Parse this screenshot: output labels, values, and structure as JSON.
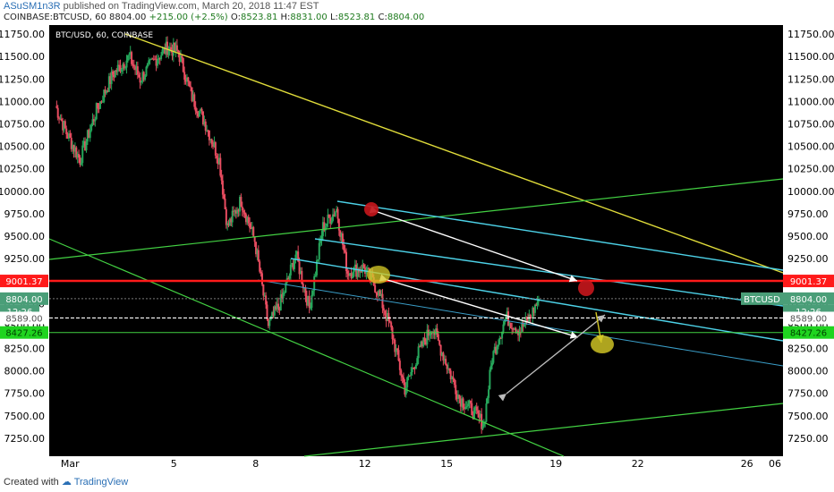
{
  "header": {
    "author": "ASuSM1n3R",
    "published": "published on TradingView.com, March 20, 2018 11:47 EST",
    "symbol": "COINBASE:BTCUSD, 60",
    "last": "8804.00",
    "change": "+215.00 (+2.5%)",
    "open_label": "O:",
    "open": "8523.81",
    "high_label": "H:",
    "high": "8831.00",
    "low_label": "L:",
    "low": "8523.81",
    "close_label": "C:",
    "close": "8804.00"
  },
  "footer": {
    "created_with": "Created with",
    "brand": "TradingView"
  },
  "colors": {
    "background": "#000000",
    "up_candle": "#26a65b",
    "down_candle": "#e84c60",
    "channel_line": "#4dd2e8",
    "trend_line": "#43d143",
    "resistance_line": "#e0dc3a",
    "horizontal_level": "#ff1a1a",
    "marker_red": "#c2161b",
    "marker_yellow": "#d4c826"
  },
  "chart_data": {
    "type": "candlestick",
    "title": "BTC/USD, 60, COINBASE",
    "ylim": [
      7050,
      11850
    ],
    "y_ticks": [
      "11750.00",
      "11500.00",
      "11250.00",
      "11000.00",
      "10750.00",
      "10500.00",
      "10250.00",
      "10000.00",
      "9750.00",
      "9500.00",
      "9250.00",
      "8750.00",
      "8500.00",
      "8250.00",
      "8000.00",
      "7750.00",
      "7500.00",
      "7250.00"
    ],
    "x_ticks": [
      "Mar",
      "5",
      "8",
      "12",
      "15",
      "19",
      "22",
      "26",
      "06"
    ],
    "approx_hourly_path": [
      {
        "day": 0,
        "price": 10950
      },
      {
        "day": 0.4,
        "price": 10650
      },
      {
        "day": 0.9,
        "price": 10350
      },
      {
        "day": 1.5,
        "price": 10900
      },
      {
        "day": 2.1,
        "price": 11300
      },
      {
        "day": 2.7,
        "price": 11500
      },
      {
        "day": 3.1,
        "price": 11250
      },
      {
        "day": 3.6,
        "price": 11450
      },
      {
        "day": 4.1,
        "price": 11600
      },
      {
        "day": 4.5,
        "price": 11550
      },
      {
        "day": 5.0,
        "price": 11050
      },
      {
        "day": 5.5,
        "price": 10750
      },
      {
        "day": 6.0,
        "price": 10350
      },
      {
        "day": 6.3,
        "price": 9600
      },
      {
        "day": 6.8,
        "price": 9900
      },
      {
        "day": 7.3,
        "price": 9450
      },
      {
        "day": 7.8,
        "price": 8500
      },
      {
        "day": 8.3,
        "price": 8800
      },
      {
        "day": 8.8,
        "price": 9300
      },
      {
        "day": 9.3,
        "price": 8700
      },
      {
        "day": 9.8,
        "price": 9600
      },
      {
        "day": 10.3,
        "price": 9800
      },
      {
        "day": 10.7,
        "price": 9100
      },
      {
        "day": 11.3,
        "price": 9150
      },
      {
        "day": 11.8,
        "price": 8900
      },
      {
        "day": 12.3,
        "price": 8450
      },
      {
        "day": 12.8,
        "price": 7800
      },
      {
        "day": 13.3,
        "price": 8200
      },
      {
        "day": 13.8,
        "price": 8500
      },
      {
        "day": 14.3,
        "price": 8100
      },
      {
        "day": 14.8,
        "price": 7700
      },
      {
        "day": 15.3,
        "price": 7550
      },
      {
        "day": 15.7,
        "price": 7400
      },
      {
        "day": 16.0,
        "price": 8150
      },
      {
        "day": 16.5,
        "price": 8600
      },
      {
        "day": 17.0,
        "price": 8450
      },
      {
        "day": 17.4,
        "price": 8600
      },
      {
        "day": 17.7,
        "price": 8804
      }
    ],
    "levels": [
      {
        "label": "9001.37",
        "value": 9001.37
      },
      {
        "label": "8804.00",
        "value": 8804
      },
      {
        "label": "8589.00",
        "value": 8589
      },
      {
        "label": "8427.26",
        "value": 8427.26
      }
    ],
    "badges": {
      "symbol": "BTCUSD",
      "countdown": "12:26"
    }
  }
}
